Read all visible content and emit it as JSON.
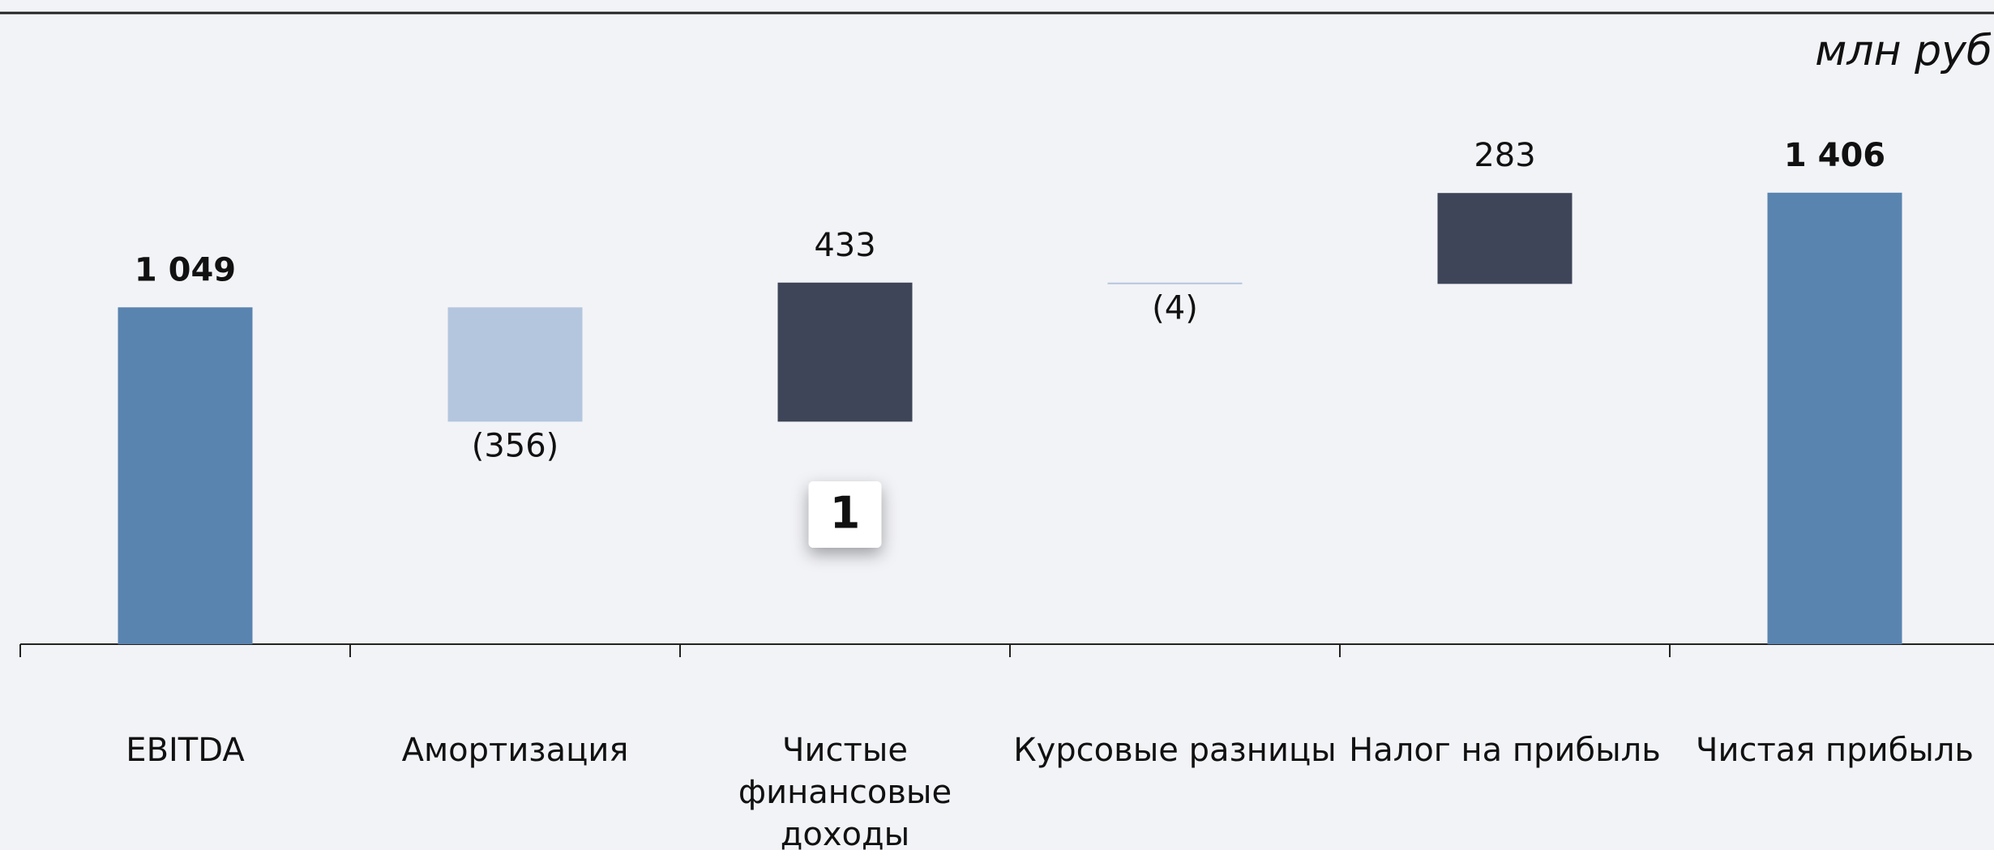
{
  "chart_data": {
    "type": "waterfall",
    "subtitle": "млн руб",
    "categories": [
      "EBITDA",
      "Амортизация",
      "Чистые финансовые доходы",
      "Курсовые разницы",
      "Налог на прибыль",
      "Чистая прибыль"
    ],
    "values": [
      1049,
      -356,
      433,
      -4,
      283,
      1406
    ],
    "value_labels": [
      "1 049",
      "(356)",
      "433",
      "(4)",
      "283",
      "1 406"
    ],
    "totals": [
      true,
      false,
      false,
      false,
      false,
      true
    ],
    "colors": [
      "#5a84b0",
      "#b4c6de",
      "#3e4558",
      "#b4c6de",
      "#3e4558",
      "#5a84b0"
    ],
    "annotations": [
      {
        "text": "1",
        "category": 2
      }
    ]
  }
}
